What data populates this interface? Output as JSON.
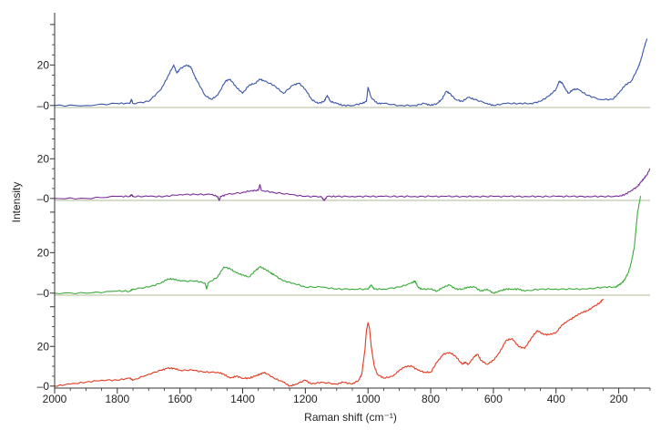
{
  "chart_data": {
    "type": "line",
    "title": "",
    "xlabel": "Raman shift (cm⁻¹)",
    "ylabel": "Intensity",
    "xlim": [
      2000,
      100
    ],
    "x_reversed": true,
    "grid": false,
    "x_ticks": [
      "2000",
      "1800",
      "1600",
      "1400",
      "1200",
      "1000",
      "800",
      "600",
      "400",
      "200"
    ],
    "panels": [
      {
        "color": "#3a56a8",
        "ylim": [
          -1,
          44
        ],
        "y_ticks": [
          "20",
          "–0"
        ],
        "x": [
          2000,
          1900,
          1800,
          1760,
          1755,
          1750,
          1700,
          1660,
          1640,
          1620,
          1610,
          1600,
          1580,
          1565,
          1555,
          1545,
          1520,
          1500,
          1480,
          1455,
          1440,
          1420,
          1400,
          1380,
          1360,
          1345,
          1330,
          1300,
          1270,
          1240,
          1220,
          1200,
          1180,
          1160,
          1140,
          1130,
          1120,
          1100,
          1080,
          1050,
          1020,
          1005,
          1000,
          990,
          970,
          950,
          900,
          850,
          820,
          800,
          780,
          765,
          750,
          740,
          720,
          700,
          680,
          660,
          620,
          600,
          560,
          520,
          480,
          450,
          420,
          400,
          390,
          380,
          370,
          360,
          345,
          330,
          300,
          260,
          220,
          200,
          180,
          160,
          140,
          130,
          120,
          110
        ],
        "values": [
          0,
          0,
          1,
          1,
          3,
          1,
          2,
          8,
          14,
          20,
          16,
          18,
          20,
          19,
          15,
          12,
          5,
          3,
          5,
          12,
          13,
          9,
          6,
          10,
          11,
          13,
          12,
          10,
          6,
          10,
          11,
          8,
          3,
          1,
          2,
          5,
          2,
          1,
          0,
          0,
          1,
          2,
          9,
          4,
          1,
          1,
          0,
          0,
          1,
          0,
          1,
          3,
          7,
          6,
          3,
          2,
          4,
          3,
          1,
          0,
          1,
          1,
          1,
          2,
          5,
          8,
          12,
          11,
          8,
          6,
          8,
          8,
          5,
          3,
          3,
          6,
          10,
          12,
          18,
          22,
          28,
          33
        ]
      },
      {
        "color": "#7a2e9a",
        "ylim": [
          -1,
          44
        ],
        "y_ticks": [
          "20",
          "–0"
        ],
        "x": [
          2000,
          1900,
          1800,
          1760,
          1755,
          1750,
          1700,
          1650,
          1600,
          1550,
          1500,
          1480,
          1475,
          1470,
          1450,
          1400,
          1370,
          1350,
          1345,
          1340,
          1300,
          1250,
          1200,
          1150,
          1140,
          1130,
          1100,
          1050,
          1000,
          950,
          900,
          850,
          800,
          750,
          700,
          650,
          600,
          550,
          500,
          450,
          400,
          350,
          300,
          250,
          200,
          180,
          160,
          140,
          130,
          120,
          110,
          100
        ],
        "values": [
          0,
          0,
          1,
          1,
          2,
          1,
          1,
          1,
          2,
          2,
          2,
          1,
          -1,
          1,
          2,
          3,
          4,
          4,
          7,
          4,
          3,
          2,
          1,
          1,
          -1,
          1,
          1,
          1,
          1,
          1,
          1,
          1,
          1,
          1,
          1,
          1,
          1,
          1,
          1,
          1,
          1,
          1,
          1,
          1,
          1,
          2,
          4,
          6,
          8,
          10,
          12,
          15
        ]
      },
      {
        "color": "#3aaa3a",
        "ylim": [
          -1,
          44
        ],
        "y_ticks": [
          "20",
          "–0"
        ],
        "x": [
          2000,
          1900,
          1800,
          1760,
          1750,
          1700,
          1660,
          1640,
          1620,
          1600,
          1550,
          1520,
          1515,
          1510,
          1480,
          1460,
          1440,
          1420,
          1400,
          1380,
          1360,
          1345,
          1330,
          1310,
          1300,
          1270,
          1240,
          1200,
          1150,
          1100,
          1050,
          1000,
          990,
          980,
          950,
          900,
          860,
          850,
          840,
          830,
          800,
          780,
          760,
          740,
          720,
          700,
          680,
          660,
          640,
          620,
          600,
          580,
          560,
          540,
          520,
          500,
          450,
          400,
          350,
          300,
          250,
          210,
          200,
          190,
          180,
          170,
          160,
          150,
          140,
          130
        ],
        "values": [
          0,
          0,
          1,
          1,
          2,
          3,
          5,
          7,
          7,
          6,
          6,
          5,
          2,
          5,
          8,
          13,
          12,
          10,
          9,
          8,
          11,
          13,
          12,
          10,
          9,
          6,
          5,
          3,
          3,
          2,
          2,
          2,
          4,
          2,
          2,
          3,
          5,
          6,
          3,
          2,
          2,
          1,
          3,
          4,
          2,
          2,
          3,
          3,
          1,
          2,
          0,
          1,
          2,
          2,
          2,
          1,
          2,
          2,
          2,
          2,
          3,
          3,
          4,
          5,
          7,
          10,
          15,
          23,
          40,
          48
        ]
      },
      {
        "color": "#e33a20",
        "ylim": [
          -1,
          44
        ],
        "y_ticks": [
          "20",
          "–0"
        ],
        "x": [
          2000,
          1950,
          1900,
          1850,
          1800,
          1760,
          1750,
          1700,
          1660,
          1640,
          1620,
          1600,
          1560,
          1520,
          1480,
          1460,
          1440,
          1420,
          1400,
          1380,
          1360,
          1345,
          1330,
          1300,
          1270,
          1250,
          1230,
          1200,
          1180,
          1150,
          1100,
          1080,
          1050,
          1030,
          1020,
          1010,
          1005,
          1000,
          995,
          990,
          980,
          970,
          950,
          920,
          900,
          880,
          860,
          840,
          820,
          800,
          780,
          760,
          740,
          720,
          700,
          690,
          680,
          660,
          650,
          640,
          620,
          600,
          580,
          560,
          540,
          520,
          500,
          480,
          460,
          440,
          420,
          400,
          380,
          360,
          340,
          320,
          300,
          280,
          260,
          250
        ],
        "values": [
          0,
          1,
          2,
          3,
          3,
          4,
          3,
          6,
          8,
          9,
          9,
          8,
          8,
          7,
          7,
          6,
          4,
          5,
          4,
          4,
          5,
          6,
          7,
          4,
          2,
          0,
          1,
          3,
          1,
          2,
          1,
          2,
          1,
          3,
          6,
          18,
          28,
          32,
          29,
          20,
          10,
          6,
          4,
          5,
          8,
          10,
          10,
          8,
          7,
          7,
          12,
          16,
          17,
          15,
          11,
          12,
          11,
          15,
          16,
          13,
          11,
          13,
          17,
          23,
          24,
          20,
          19,
          24,
          28,
          26,
          26,
          27,
          31,
          33,
          35,
          37,
          38,
          40,
          42,
          44
        ]
      }
    ]
  }
}
